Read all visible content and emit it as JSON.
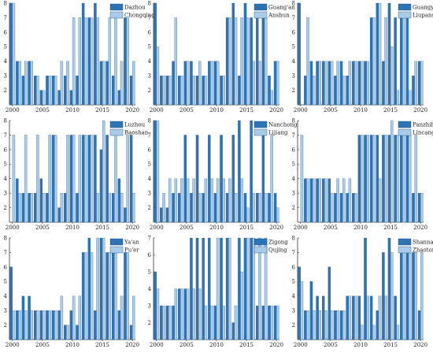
{
  "colors": {
    "dark": "#2e74b5",
    "light": "#a9cbe8"
  },
  "chart_data": [
    {
      "type": "bar",
      "x": [
        2000,
        2001,
        2002,
        2003,
        2004,
        2005,
        2006,
        2007,
        2008,
        2009,
        2010,
        2011,
        2012,
        2013,
        2014,
        2015,
        2016,
        2017,
        2018,
        2019,
        2020
      ],
      "xticks": [
        2000,
        2005,
        2010,
        2015,
        2020
      ],
      "ylim": [
        1,
        8
      ],
      "yticks": [
        2,
        3,
        4,
        5,
        6,
        7,
        8
      ],
      "legend_position": "top-right",
      "series": [
        {
          "name": "Dazhou",
          "values": [
            8,
            4,
            3,
            4,
            3,
            2,
            3,
            3,
            2,
            3,
            2,
            3,
            8,
            7,
            8,
            4,
            4,
            3,
            2,
            7,
            3
          ]
        },
        {
          "name": "Chongqing",
          "values": [
            8,
            4,
            4,
            4,
            3,
            2,
            3,
            3,
            4,
            4,
            7,
            7,
            7,
            7,
            7,
            4,
            7,
            7,
            4,
            7,
            4
          ]
        }
      ]
    },
    {
      "type": "bar",
      "x": [
        2000,
        2001,
        2002,
        2003,
        2004,
        2005,
        2006,
        2007,
        2008,
        2009,
        2010,
        2011,
        2012,
        2013,
        2014,
        2015,
        2016,
        2017,
        2018,
        2019,
        2020
      ],
      "xticks": [
        2000,
        2005,
        2010,
        2015,
        2020
      ],
      "ylim": [
        1,
        8
      ],
      "yticks": [
        2,
        3,
        4,
        5,
        6,
        7,
        8
      ],
      "legend_position": "top-right",
      "series": [
        {
          "name": "Guang'an",
          "values": [
            8,
            3,
            3,
            4,
            3,
            4,
            4,
            3,
            3,
            4,
            4,
            3,
            7,
            8,
            3,
            8,
            7,
            7,
            7,
            3,
            4
          ]
        },
        {
          "name": "Anshun",
          "values": [
            5,
            3,
            3,
            7,
            3,
            4,
            3,
            4,
            3,
            4,
            4,
            3,
            7,
            7,
            7,
            7,
            4,
            4,
            7,
            2,
            4
          ]
        }
      ]
    },
    {
      "type": "bar",
      "x": [
        2000,
        2001,
        2002,
        2003,
        2004,
        2005,
        2006,
        2007,
        2008,
        2009,
        2010,
        2011,
        2012,
        2013,
        2014,
        2015,
        2016,
        2017,
        2018,
        2019,
        2020
      ],
      "xticks": [
        2000,
        2005,
        2010,
        2015,
        2020
      ],
      "ylim": [
        1,
        8
      ],
      "yticks": [
        2,
        3,
        4,
        5,
        6,
        7,
        8
      ],
      "legend_position": "top-right",
      "series": [
        {
          "name": "Guangyuan",
          "values": [
            8,
            3,
            4,
            4,
            4,
            4,
            3,
            4,
            3,
            4,
            4,
            4,
            7,
            8,
            4,
            8,
            7,
            7,
            7,
            3,
            4
          ]
        },
        {
          "name": "Liupanshui",
          "values": [
            1,
            7,
            3,
            4,
            4,
            4,
            4,
            3,
            4,
            4,
            4,
            4,
            7,
            8,
            7,
            5,
            2,
            7,
            2,
            4,
            4
          ]
        }
      ]
    },
    {
      "type": "bar",
      "x": [
        2000,
        2001,
        2002,
        2003,
        2004,
        2005,
        2006,
        2007,
        2008,
        2009,
        2010,
        2011,
        2012,
        2013,
        2014,
        2015,
        2016,
        2017,
        2018,
        2019,
        2020
      ],
      "xticks": [
        2000,
        2005,
        2010,
        2015,
        2020
      ],
      "ylim": [
        1,
        8
      ],
      "yticks": [
        2,
        3,
        4,
        5,
        6,
        7,
        8
      ],
      "legend_position": "top-right",
      "series": [
        {
          "name": "Luzhou",
          "values": [
            1,
            4,
            3,
            3,
            3,
            4,
            3,
            7,
            2,
            3,
            7,
            3,
            7,
            7,
            7,
            6,
            7,
            3,
            4,
            2,
            7
          ]
        },
        {
          "name": "Baoshan",
          "values": [
            7,
            3,
            7,
            3,
            7,
            3,
            7,
            7,
            3,
            7,
            7,
            7,
            7,
            7,
            3,
            8,
            3,
            7,
            3,
            7,
            3
          ]
        }
      ]
    },
    {
      "type": "bar",
      "x": [
        2000,
        2001,
        2002,
        2003,
        2004,
        2005,
        2006,
        2007,
        2008,
        2009,
        2010,
        2011,
        2012,
        2013,
        2014,
        2015,
        2016,
        2017,
        2018,
        2019,
        2020
      ],
      "xticks": [
        2000,
        2005,
        2010,
        2015,
        2020
      ],
      "ylim": [
        1,
        8
      ],
      "yticks": [
        2,
        3,
        4,
        5,
        6,
        7,
        8
      ],
      "legend_position": "top-right",
      "series": [
        {
          "name": "Nanchong",
          "values": [
            8,
            2,
            2,
            3,
            3,
            7,
            3,
            7,
            3,
            7,
            3,
            7,
            3,
            7,
            8,
            3,
            8,
            3,
            7,
            3,
            3
          ]
        },
        {
          "name": "Lijiang",
          "values": [
            8,
            3,
            4,
            4,
            4,
            4,
            4,
            3,
            4,
            4,
            4,
            4,
            4,
            3,
            4,
            2,
            3,
            3,
            3,
            7,
            2
          ]
        }
      ]
    },
    {
      "type": "bar",
      "x": [
        2000,
        2001,
        2002,
        2003,
        2004,
        2005,
        2006,
        2007,
        2008,
        2009,
        2010,
        2011,
        2012,
        2013,
        2014,
        2015,
        2016,
        2017,
        2018,
        2019,
        2020
      ],
      "xticks": [
        2000,
        2005,
        2010,
        2015,
        2020
      ],
      "ylim": [
        1,
        8
      ],
      "yticks": [
        2,
        3,
        4,
        5,
        6,
        7,
        8
      ],
      "legend_position": "top-right",
      "series": [
        {
          "name": "Panzhihua",
          "values": [
            1,
            4,
            4,
            4,
            4,
            4,
            3,
            3,
            3,
            3,
            7,
            7,
            7,
            7,
            7,
            7,
            7,
            7,
            7,
            3,
            3
          ]
        },
        {
          "name": "Lincang",
          "values": [
            7,
            4,
            4,
            4,
            4,
            3,
            4,
            4,
            4,
            3,
            7,
            7,
            7,
            4,
            7,
            8,
            7,
            7,
            7,
            7,
            3
          ]
        }
      ]
    },
    {
      "type": "bar",
      "x": [
        2000,
        2001,
        2002,
        2003,
        2004,
        2005,
        2006,
        2007,
        2008,
        2009,
        2010,
        2011,
        2012,
        2013,
        2014,
        2015,
        2016,
        2017,
        2018,
        2019,
        2020
      ],
      "xticks": [
        2000,
        2005,
        2010,
        2015,
        2020
      ],
      "ylim": [
        1,
        8
      ],
      "yticks": [
        2,
        3,
        4,
        5,
        6,
        7,
        8
      ],
      "legend_position": "top-right",
      "series": [
        {
          "name": "Ya'an",
          "values": [
            6,
            3,
            4,
            4,
            3,
            3,
            3,
            3,
            3,
            2,
            3,
            2,
            7,
            8,
            3,
            8,
            7,
            7,
            3,
            7,
            2
          ]
        },
        {
          "name": "Pu'er",
          "values": [
            3,
            3,
            3,
            3,
            3,
            3,
            3,
            3,
            4,
            2,
            4,
            4,
            7,
            7,
            8,
            8,
            7,
            7,
            4,
            7,
            4
          ]
        }
      ]
    },
    {
      "type": "bar",
      "x": [
        2000,
        2001,
        2002,
        2003,
        2004,
        2005,
        2006,
        2007,
        2008,
        2009,
        2010,
        2011,
        2012,
        2013,
        2014,
        2015,
        2016,
        2017,
        2018,
        2019,
        2020
      ],
      "xticks": [
        2000,
        2005,
        2010,
        2015,
        2020
      ],
      "ylim": [
        1,
        7
      ],
      "yticks": [
        2,
        3,
        4,
        5,
        6,
        7
      ],
      "legend_position": "top-right",
      "series": [
        {
          "name": "Zigong",
          "values": [
            5,
            3,
            3,
            3,
            4,
            4,
            7,
            7,
            7,
            7,
            3,
            7,
            7,
            2,
            7,
            7,
            7,
            3,
            3,
            3,
            3
          ]
        },
        {
          "name": "Qujing",
          "values": [
            4,
            3,
            3,
            4,
            4,
            4,
            4,
            4,
            3,
            3,
            7,
            3,
            7,
            3,
            5,
            7,
            7,
            7,
            7,
            3,
            3
          ]
        }
      ]
    },
    {
      "type": "bar",
      "x": [
        2000,
        2001,
        2002,
        2003,
        2004,
        2005,
        2006,
        2007,
        2008,
        2009,
        2010,
        2011,
        2012,
        2013,
        2014,
        2015,
        2016,
        2017,
        2018,
        2019,
        2020
      ],
      "xticks": [
        2000,
        2005,
        2010,
        2015,
        2020
      ],
      "ylim": [
        1,
        8
      ],
      "yticks": [
        2,
        3,
        4,
        5,
        6,
        7,
        8
      ],
      "legend_position": "top-right",
      "series": [
        {
          "name": "Shannan",
          "values": [
            6,
            3,
            5,
            4,
            4,
            6,
            3,
            3,
            4,
            4,
            4,
            8,
            4,
            3,
            7,
            8,
            4,
            7,
            7,
            7,
            3
          ]
        },
        {
          "name": "Zhaotong",
          "values": [
            5,
            3,
            3,
            3,
            3,
            3,
            3,
            3,
            4,
            4,
            2,
            4,
            2,
            4,
            4,
            7,
            2,
            7,
            7,
            7,
            7
          ]
        }
      ]
    }
  ]
}
